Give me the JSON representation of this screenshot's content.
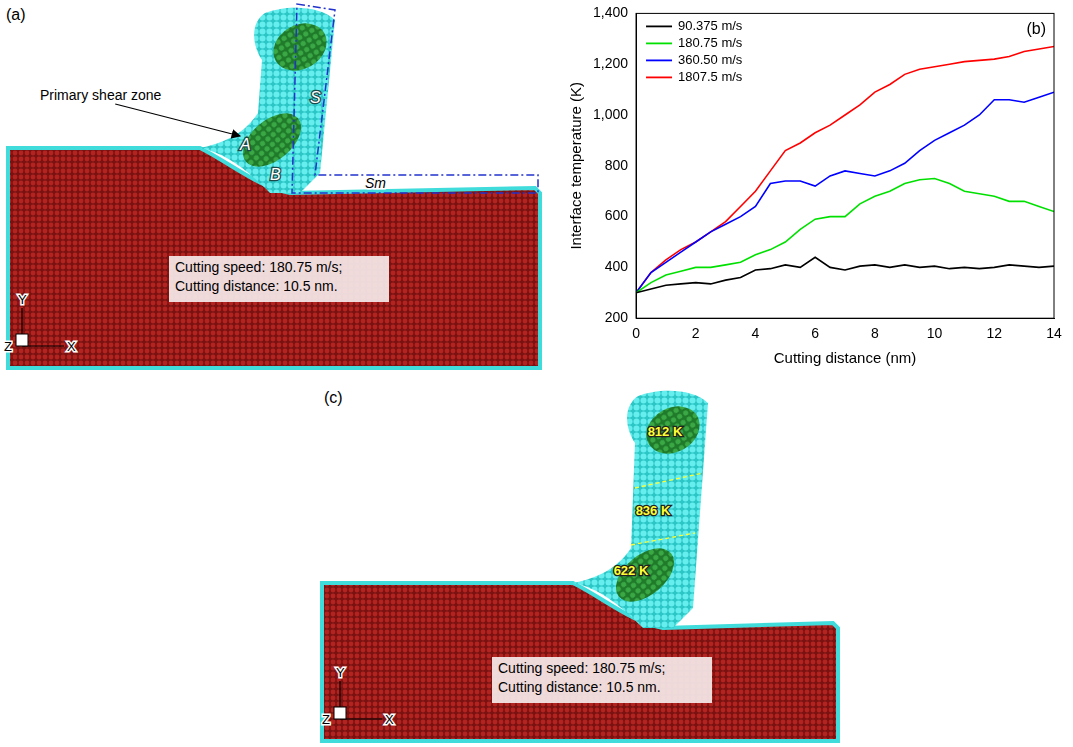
{
  "chart_data": {
    "type": "line",
    "annotations": [
      "(b)"
    ],
    "x_label": "Cutting distance (nm)",
    "y_label": "Interface temperature (K)",
    "x": [
      0,
      0.5,
      1,
      1.5,
      2,
      2.5,
      3,
      3.5,
      4,
      4.5,
      5,
      5.5,
      6,
      6.5,
      7,
      7.5,
      8,
      8.5,
      9,
      9.5,
      10,
      10.5,
      11,
      11.5,
      12,
      12.5,
      13,
      13.5,
      14
    ],
    "series": [
      {
        "name": "90.375 m/s",
        "color": "#000000",
        "values": [
          300,
          315,
          330,
          335,
          340,
          335,
          350,
          360,
          390,
          395,
          410,
          400,
          440,
          400,
          390,
          405,
          410,
          400,
          410,
          400,
          405,
          395,
          400,
          395,
          400,
          410,
          405,
          400,
          405
        ]
      },
      {
        "name": "180.75 m/s",
        "color": "#00e000",
        "values": [
          300,
          340,
          370,
          385,
          400,
          400,
          410,
          420,
          450,
          470,
          500,
          550,
          590,
          600,
          600,
          650,
          680,
          700,
          730,
          745,
          750,
          730,
          700,
          690,
          680,
          660,
          660,
          640,
          620
        ]
      },
      {
        "name": "360.50 m/s",
        "color": "#0000ff",
        "values": [
          300,
          380,
          420,
          460,
          500,
          540,
          570,
          600,
          640,
          730,
          740,
          740,
          720,
          760,
          780,
          770,
          760,
          780,
          810,
          860,
          900,
          930,
          960,
          1000,
          1060,
          1060,
          1050,
          1070,
          1090
        ]
      },
      {
        "name": "1807.5 m/s",
        "color": "#ff0000",
        "values": [
          300,
          380,
          430,
          470,
          500,
          540,
          580,
          640,
          700,
          780,
          860,
          890,
          930,
          960,
          1000,
          1040,
          1090,
          1120,
          1160,
          1180,
          1190,
          1200,
          1210,
          1215,
          1220,
          1230,
          1250,
          1260,
          1270
        ]
      }
    ],
    "xlim": [
      0,
      14
    ],
    "xticks": [
      0,
      2,
      4,
      6,
      8,
      10,
      12,
      14
    ],
    "ylim": [
      200,
      1400
    ],
    "yticks": [
      200,
      400,
      600,
      800,
      1000,
      1200,
      1400
    ],
    "grid": false,
    "legend": "upper left"
  },
  "snapshots": [
    {
      "label": "(a)",
      "annotations": {
        "shear_zone": "Primary shear zone",
        "zone_a": "A",
        "zone_b": "B",
        "tool_face": "S",
        "tool_base": "Sm"
      },
      "caption": [
        "Cutting speed: 180.75 m/s;",
        "Cutting distance: 10.5 nm."
      ],
      "axes": {
        "y": "Y",
        "x": "X",
        "z": "Z"
      }
    },
    {
      "label": "(c)",
      "temperatures": [
        "812 K",
        "836 K",
        "622 K"
      ],
      "caption": [
        "Cutting speed: 180.75 m/s;",
        "Cutting distance: 10.5 nm."
      ],
      "axes": {
        "y": "Y",
        "x": "X",
        "z": "Z"
      }
    }
  ]
}
